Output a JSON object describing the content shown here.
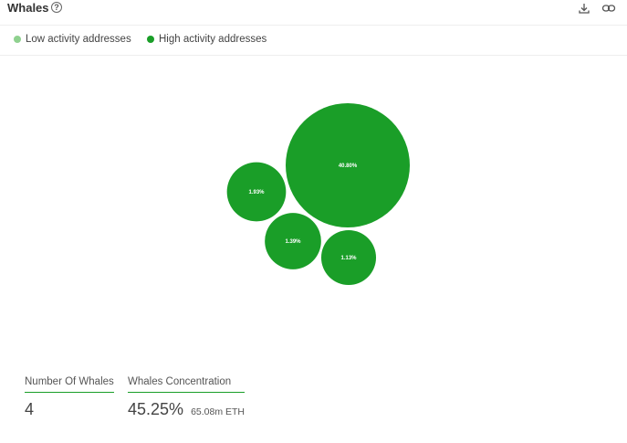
{
  "header": {
    "title": "Whales",
    "help_icon": "question-circle-icon",
    "download_icon": "download-icon",
    "link_icon": "link-icon"
  },
  "legend": {
    "items": [
      {
        "label": "Low activity addresses",
        "color": "#8fd18f"
      },
      {
        "label": "High activity addresses",
        "color": "#1a9e28"
      }
    ]
  },
  "chart_data": {
    "type": "bubble",
    "series_color": "#1a9e28",
    "label_color": "#ffffff",
    "bubbles": [
      {
        "label": "40.80%",
        "value": 40.8,
        "category": "High activity addresses"
      },
      {
        "label": "1.93%",
        "value": 1.93,
        "category": "High activity addresses"
      },
      {
        "label": "1.39%",
        "value": 1.39,
        "category": "High activity addresses"
      },
      {
        "label": "1.13%",
        "value": 1.13,
        "category": "High activity addresses"
      }
    ]
  },
  "stats": {
    "count_label": "Number Of Whales",
    "count_value": "4",
    "concentration_label": "Whales Concentration",
    "concentration_value": "45.25%",
    "concentration_sub": "65.08m ETH"
  }
}
